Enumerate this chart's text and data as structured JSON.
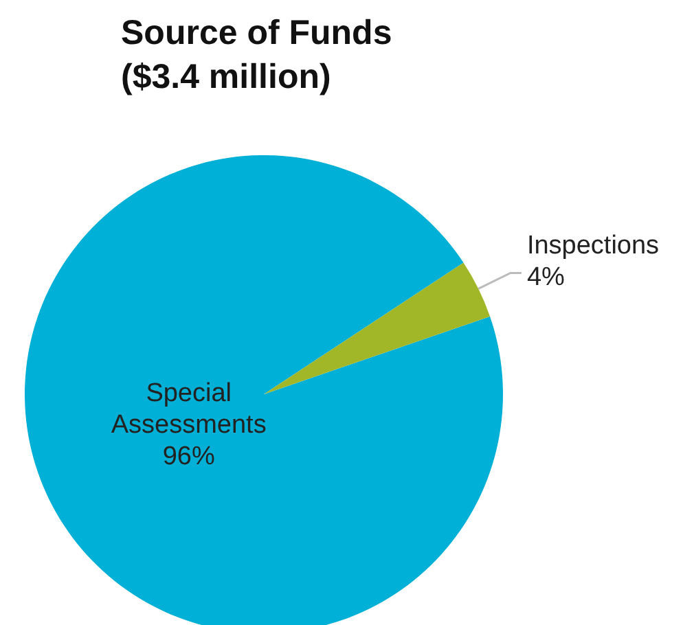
{
  "chart_data": {
    "type": "pie",
    "title": "Source of Funds",
    "subtitle": "($3.4 million)",
    "categories": [
      "Special Assessments",
      "Inspections"
    ],
    "values": [
      96,
      4
    ],
    "value_labels": [
      "96%",
      "4%"
    ],
    "colors": [
      "#00b0d6",
      "#a2b728"
    ]
  }
}
